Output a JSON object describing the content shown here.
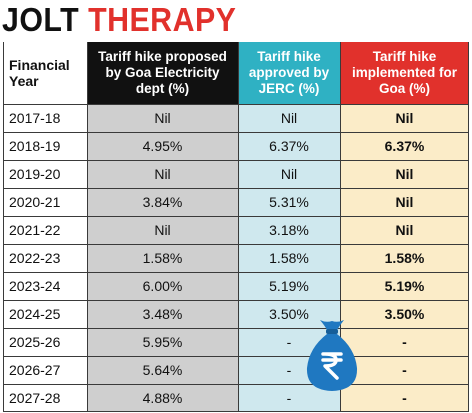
{
  "title": {
    "word1": "JOLT",
    "word2": "THERAPY"
  },
  "headers": {
    "year": "Financial Year",
    "proposed": "Tariff hike proposed by Goa Electricity dept (%)",
    "approved": "Tariff hike approved by JERC  (%)",
    "implemented": "Tariff hike implemented for Goa (%)"
  },
  "rows": [
    {
      "year": "2017-18",
      "proposed": "Nil",
      "approved": "Nil",
      "implemented": "Nil"
    },
    {
      "year": "2018-19",
      "proposed": "4.95%",
      "approved": "6.37%",
      "implemented": "6.37%"
    },
    {
      "year": "2019-20",
      "proposed": "Nil",
      "approved": "Nil",
      "implemented": "Nil"
    },
    {
      "year": "2020-21",
      "proposed": "3.84%",
      "approved": "5.31%",
      "implemented": "Nil"
    },
    {
      "year": "2021-22",
      "proposed": "Nil",
      "approved": "3.18%",
      "implemented": "Nil"
    },
    {
      "year": "2022-23",
      "proposed": "1.58%",
      "approved": "1.58%",
      "implemented": "1.58%"
    },
    {
      "year": "2023-24",
      "proposed": "6.00%",
      "approved": "5.19%",
      "implemented": "5.19%"
    },
    {
      "year": "2024-25",
      "proposed": "3.48%",
      "approved": "3.50%",
      "implemented": "3.50%"
    },
    {
      "year": "2025-26",
      "proposed": "5.95%",
      "approved": "-",
      "implemented": "-"
    },
    {
      "year": "2026-27",
      "proposed": "5.64%",
      "approved": "-",
      "implemented": "-"
    },
    {
      "year": "2027-28",
      "proposed": "4.88%",
      "approved": "-",
      "implemented": "-"
    }
  ],
  "colors": {
    "accent_red": "#e1312c",
    "accent_teal": "#2fb1c3",
    "header_black": "#111111",
    "col_grey": "#cfcfcf",
    "col_teal": "#cfe8ee",
    "col_cream": "#fbecc8",
    "bag_blue": "#1f78c1"
  },
  "icons": {
    "money_bag": "rupee-money-bag-icon"
  }
}
